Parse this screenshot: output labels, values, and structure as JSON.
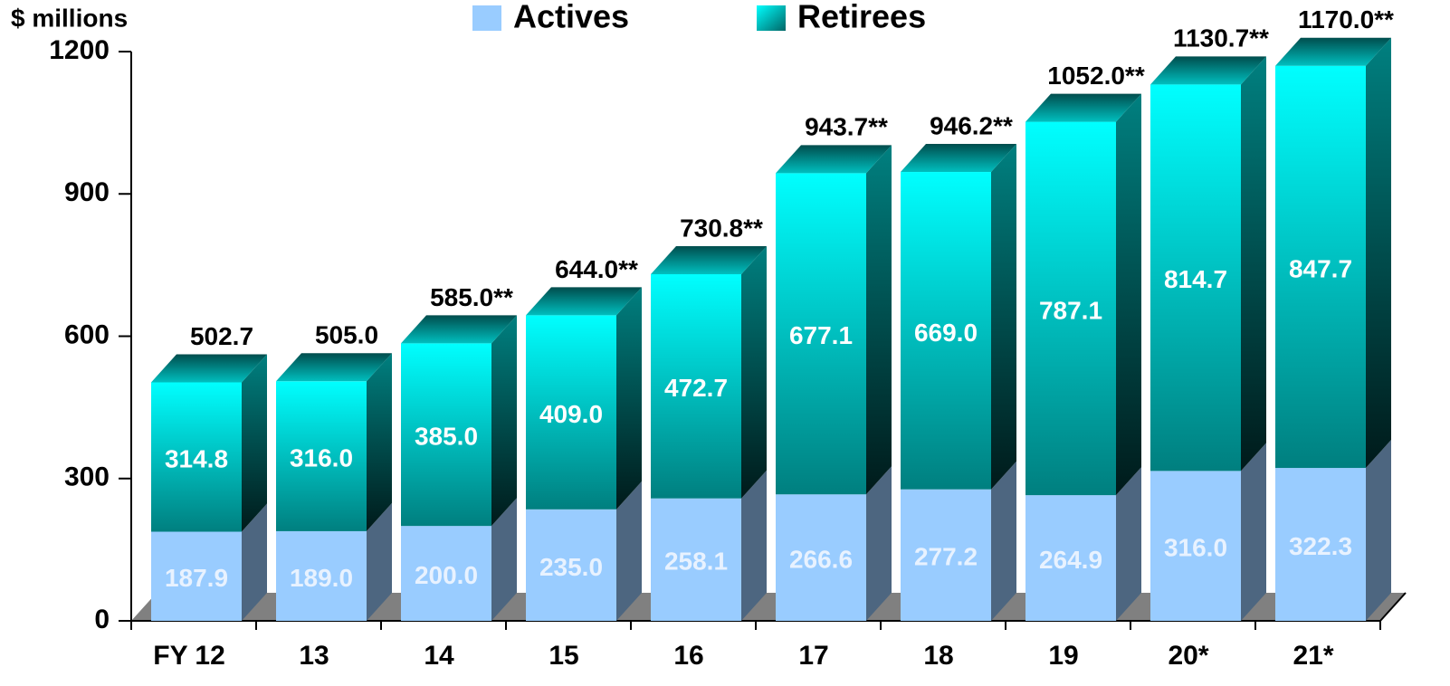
{
  "chart_data": {
    "type": "bar",
    "stacked": true,
    "y_label": "$ millions",
    "categories": [
      "FY 12",
      "13",
      "14",
      "15",
      "16",
      "17",
      "18",
      "19",
      "20*",
      "21*"
    ],
    "series": [
      {
        "name": "Actives",
        "color": "#99ccff",
        "values": [
          187.9,
          189.0,
          200.0,
          235.0,
          258.1,
          266.6,
          277.2,
          264.9,
          316.0,
          322.3
        ],
        "value_labels": [
          "187.9",
          "189.0",
          "200.0",
          "235.0",
          "258.1",
          "266.6",
          "277.2",
          "264.9",
          "316.0",
          "322.3"
        ]
      },
      {
        "name": "Retirees",
        "color": "#00ffff",
        "values": [
          314.8,
          316.0,
          385.0,
          409.0,
          472.7,
          677.1,
          669.0,
          787.1,
          814.7,
          847.7
        ],
        "value_labels": [
          "314.8",
          "316.0",
          "385.0",
          "409.0",
          "472.7",
          "677.1",
          "669.0",
          "787.1",
          "814.7",
          "847.7"
        ]
      }
    ],
    "totals": {
      "values": [
        502.7,
        505.0,
        585.0,
        644.0,
        730.8,
        943.7,
        946.2,
        1052.0,
        1130.7,
        1170.0
      ],
      "value_labels": [
        "502.7",
        "505.0",
        "585.0**",
        "644.0**",
        "730.8**",
        "943.7**",
        "946.2**",
        "1052.0**",
        "1130.7**",
        "1170.0**"
      ]
    },
    "ylim": [
      0,
      1200
    ],
    "yticks": [
      0,
      300,
      600,
      900,
      1200
    ],
    "legend": "top"
  }
}
